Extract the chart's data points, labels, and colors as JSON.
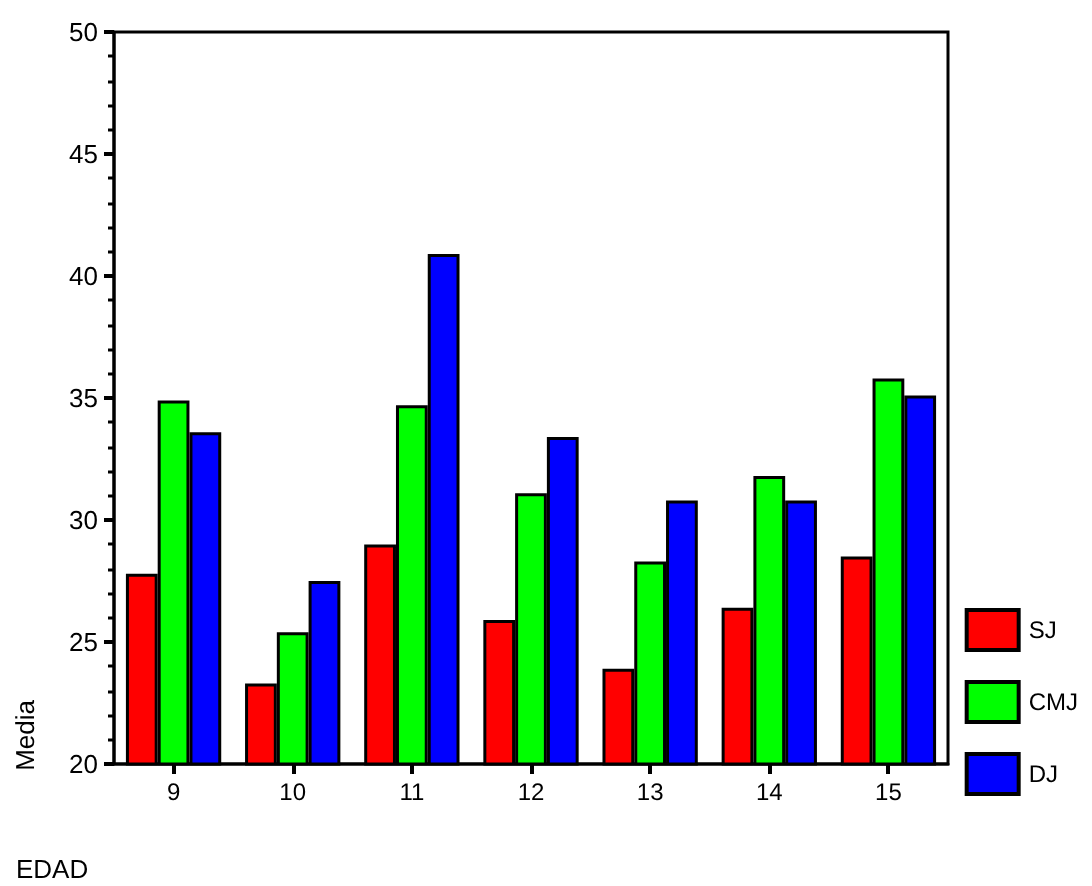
{
  "chart_data": {
    "type": "bar",
    "xlabel": "EDAD",
    "ylabel": "Media",
    "categories": [
      "9",
      "10",
      "11",
      "12",
      "13",
      "14",
      "15"
    ],
    "series": [
      {
        "name": "SJ",
        "color": "#ff0000",
        "values": [
          27.8,
          23.3,
          29.0,
          25.9,
          23.9,
          26.4,
          28.5
        ]
      },
      {
        "name": "CMJ",
        "color": "#00ff00",
        "values": [
          34.9,
          25.4,
          34.7,
          31.1,
          28.3,
          31.8,
          35.8
        ]
      },
      {
        "name": "DJ",
        "color": "#0000ff",
        "values": [
          33.6,
          27.5,
          40.9,
          33.4,
          30.8,
          30.8,
          35.1
        ]
      }
    ],
    "ylim": [
      20,
      50
    ],
    "yticks": [
      20,
      25,
      30,
      35,
      40,
      45,
      50
    ],
    "legend": "right",
    "grid": false
  }
}
